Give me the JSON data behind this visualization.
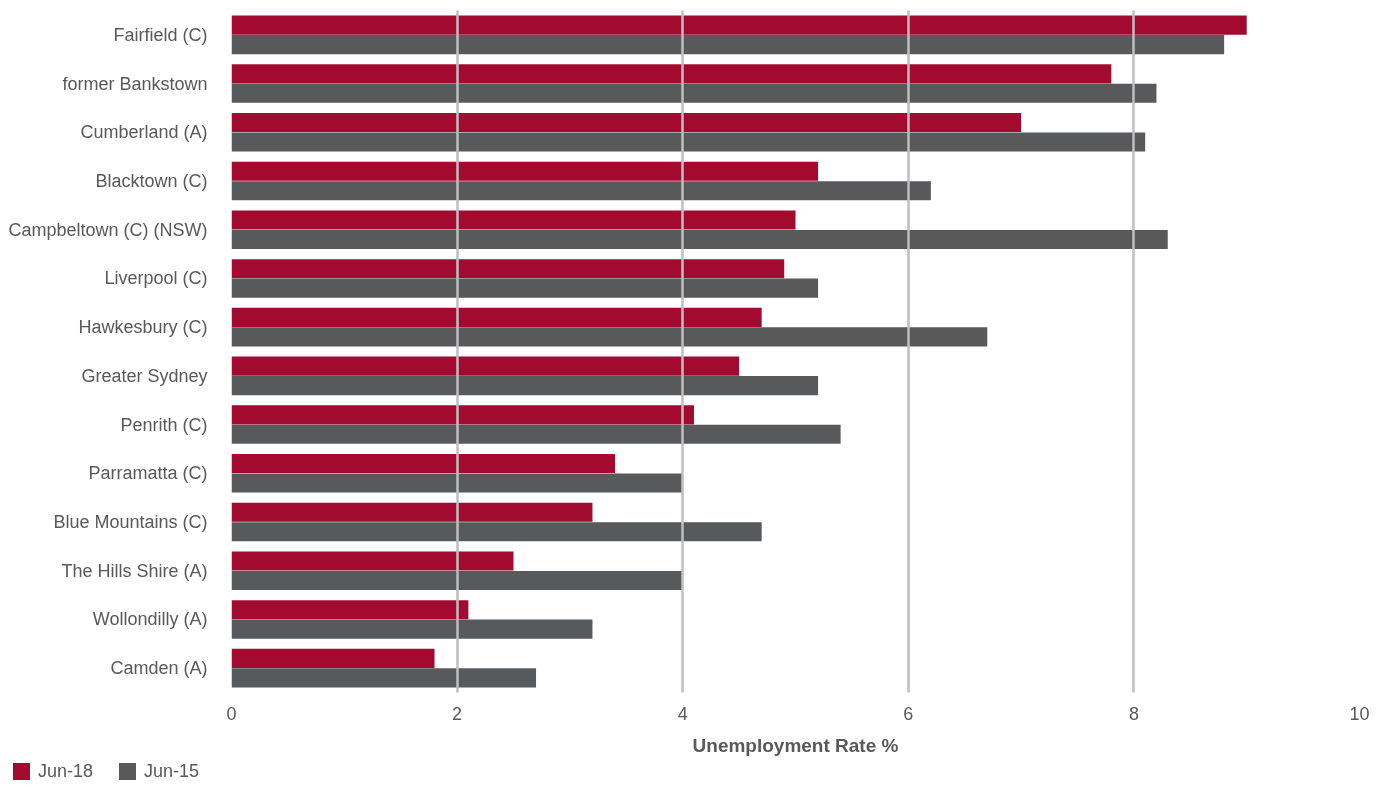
{
  "chart_data": {
    "type": "bar",
    "orientation": "horizontal",
    "xlabel": "Unemployment Rate %",
    "categories": [
      "Fairfield (C)",
      "former Bankstown",
      "Cumberland (A)",
      "Blacktown (C)",
      "Campbeltown (C) (NSW)",
      "Liverpool (C)",
      "Hawkesbury (C)",
      "Greater Sydney",
      "Penrith (C)",
      "Parramatta (C)",
      "Blue Mountains (C)",
      "The Hills Shire (A)",
      "Wollondilly (A)",
      "Camden (A)"
    ],
    "series": [
      {
        "name": "Jun-18",
        "color": "#a20a30",
        "values": [
          9.0,
          7.8,
          7.0,
          5.2,
          5.0,
          4.9,
          4.7,
          4.5,
          4.1,
          3.4,
          3.2,
          2.5,
          2.1,
          1.8
        ]
      },
      {
        "name": "Jun-15",
        "color": "#58595b",
        "values": [
          8.8,
          8.2,
          8.1,
          6.2,
          8.3,
          5.2,
          6.7,
          5.2,
          5.4,
          4.0,
          4.7,
          4.0,
          3.2,
          2.7
        ]
      }
    ],
    "xlim": [
      0,
      10
    ],
    "xticks": [
      0,
      2,
      4,
      6,
      8,
      10
    ],
    "grid": "x",
    "legend": "bottom left"
  }
}
